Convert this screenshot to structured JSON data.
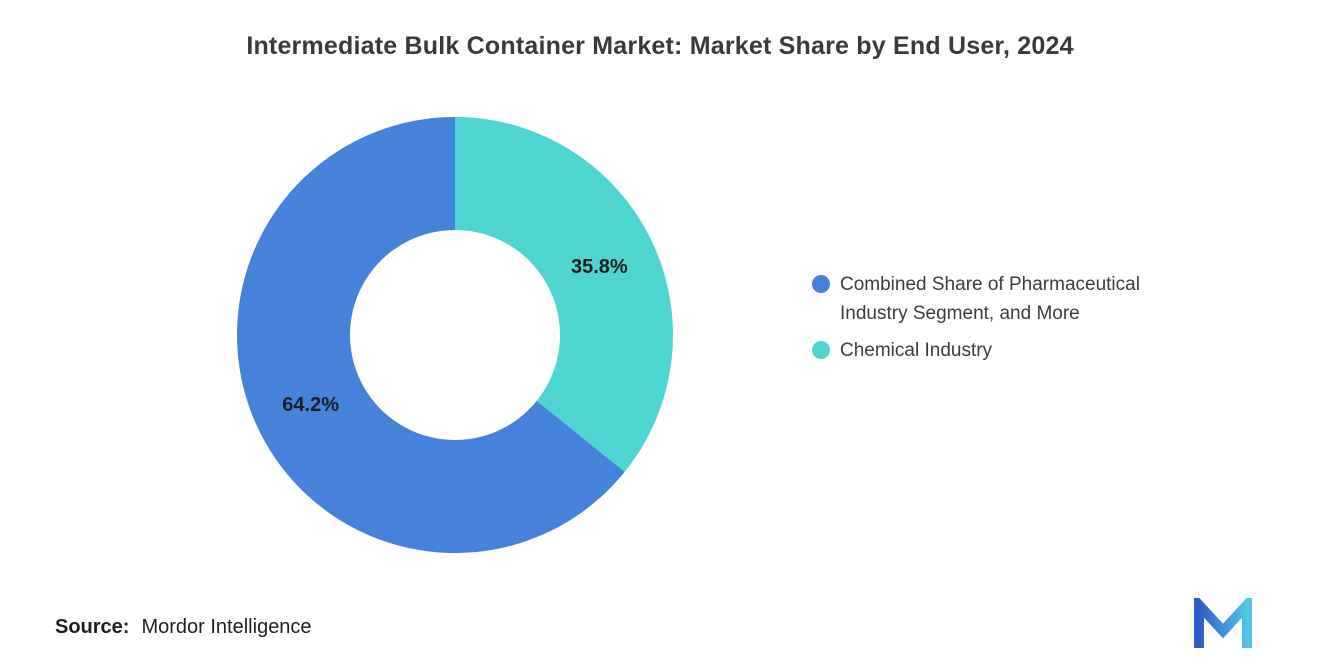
{
  "title": "Intermediate Bulk Container Market: Market Share by End User, 2024",
  "source": {
    "label": "Source:",
    "value": "Mordor Intelligence"
  },
  "logo": {
    "name": "mordor-intelligence-logo"
  },
  "chart_data": {
    "type": "pie",
    "subtype": "donut",
    "title": "Intermediate Bulk Container Market: Market Share by End User, 2024",
    "start_angle_deg": 0,
    "direction": "clockwise",
    "slices": [
      {
        "label": "Chemical Industry",
        "value": 35.8,
        "data_label": "35.8%",
        "color": "#4ED5D2"
      },
      {
        "label": "Combined Share of Pharmaceutical Industry Segment, and More",
        "value": 64.2,
        "data_label": "64.2%",
        "color": "#4583DB"
      }
    ],
    "legend_position": "right",
    "legend": [
      {
        "label": "Combined Share of Pharmaceutical Industry Segment, and More",
        "color": "#4583DB"
      },
      {
        "label": "Chemical Industry",
        "color": "#4ED5D2"
      }
    ]
  }
}
